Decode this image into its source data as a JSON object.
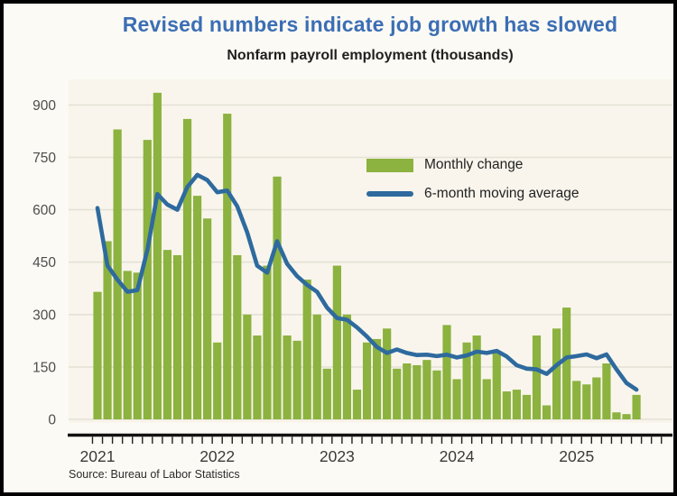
{
  "header": {
    "title": "Revised numbers indicate job growth has slowed",
    "subtitle": "Nonfarm payroll employment (thousands)"
  },
  "legend": {
    "bar_label": "Monthly change",
    "line_label": "6-month moving average"
  },
  "source_note": "Source: Bureau of Labor Statistics",
  "colors": {
    "title_blue": "#3b6eb5",
    "bar_green": "#8cb23f",
    "line_blue": "#2e6a9e",
    "plot_bg": "#f9f5ec",
    "canvas_bg": "#fcfaf4",
    "gridline": "#e4e1d6",
    "axis": "#111111",
    "tick": "#222222",
    "ylabel": "#4d4d4d",
    "xlabel": "#3a3a3a"
  },
  "chart_data": {
    "type": "bar",
    "title": "Nonfarm payroll employment (thousands)",
    "xlabel": "",
    "ylabel": "",
    "ylim": [
      0,
      950
    ],
    "yticks": [
      0,
      150,
      300,
      450,
      600,
      750,
      900
    ],
    "grid": true,
    "legend_position": "upper right",
    "xtick_year_labels": [
      "2021",
      "2022",
      "2023",
      "2024",
      "2025"
    ],
    "categories": [
      "2021-01",
      "2021-02",
      "2021-03",
      "2021-04",
      "2021-05",
      "2021-06",
      "2021-07",
      "2021-08",
      "2021-09",
      "2021-10",
      "2021-11",
      "2021-12",
      "2022-01",
      "2022-02",
      "2022-03",
      "2022-04",
      "2022-05",
      "2022-06",
      "2022-07",
      "2022-08",
      "2022-09",
      "2022-10",
      "2022-11",
      "2022-12",
      "2023-01",
      "2023-02",
      "2023-03",
      "2023-04",
      "2023-05",
      "2023-06",
      "2023-07",
      "2023-08",
      "2023-09",
      "2023-10",
      "2023-11",
      "2023-12",
      "2024-01",
      "2024-02",
      "2024-03",
      "2024-04",
      "2024-05",
      "2024-06",
      "2024-07",
      "2024-08",
      "2024-09",
      "2024-10",
      "2024-11",
      "2024-12",
      "2025-01",
      "2025-02",
      "2025-03",
      "2025-04",
      "2025-05",
      "2025-06",
      "2025-07"
    ],
    "series": [
      {
        "name": "Monthly change",
        "type": "bar",
        "values": [
          365,
          510,
          830,
          425,
          420,
          800,
          935,
          485,
          470,
          860,
          640,
          575,
          220,
          875,
          470,
          300,
          240,
          440,
          695,
          240,
          225,
          400,
          300,
          145,
          440,
          300,
          85,
          220,
          230,
          260,
          145,
          160,
          155,
          170,
          140,
          270,
          115,
          220,
          240,
          115,
          190,
          80,
          85,
          70,
          240,
          40,
          260,
          320,
          110,
          100,
          120,
          160,
          20,
          15,
          70
        ]
      },
      {
        "name": "6-month moving average",
        "type": "line",
        "values": [
          605,
          440,
          400,
          365,
          370,
          485,
          645,
          615,
          600,
          665,
          700,
          685,
          650,
          655,
          610,
          535,
          440,
          420,
          510,
          445,
          410,
          385,
          365,
          320,
          290,
          285,
          263,
          237,
          207,
          190,
          200,
          190,
          184,
          185,
          181,
          185,
          177,
          183,
          194,
          190,
          196,
          180,
          155,
          145,
          143,
          130,
          155,
          177,
          181,
          186,
          175,
          186,
          143,
          104,
          85
        ]
      }
    ]
  }
}
